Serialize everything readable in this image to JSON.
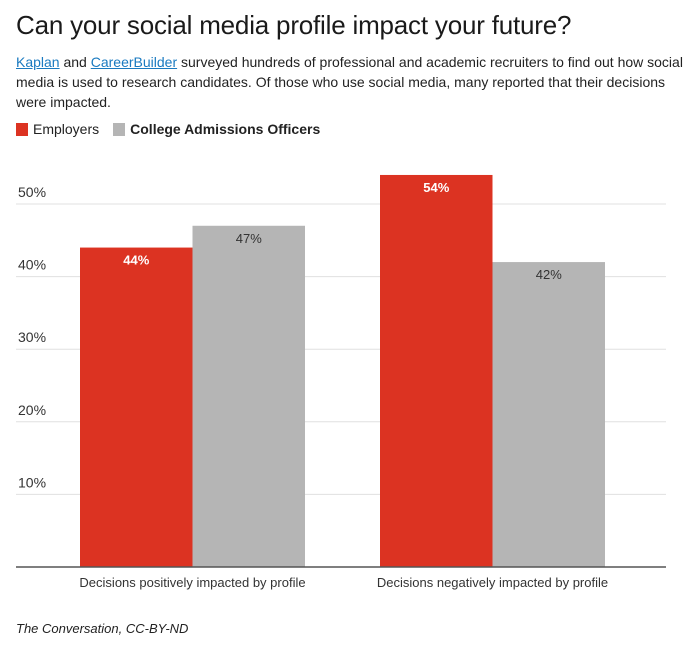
{
  "title": "Can your social media profile impact your future?",
  "description": {
    "link1": "Kaplan",
    "text1": " and ",
    "link2": "CareerBuilder",
    "text2": " surveyed hundreds of professional and academic recruiters to find out how social media is used to research candidates. Of those who use social media, many reported that their decisions were impacted."
  },
  "source": "The Conversation, CC-BY-ND",
  "colors": {
    "employers": "#dc3322",
    "admissions": "#b5b5b5",
    "grid": "#e0e0e0",
    "axis": "#555555"
  },
  "chart_data": {
    "type": "bar",
    "title": "Can your social media profile impact your future?",
    "xlabel": "",
    "ylabel": "",
    "ylim": [
      0,
      50
    ],
    "yticks": [
      10,
      20,
      30,
      40,
      50
    ],
    "ytick_labels": [
      "10%",
      "20%",
      "30%",
      "40%",
      "50%"
    ],
    "grid": true,
    "legend_placement": "top-left",
    "categories": [
      "Decisions positively impacted by profile",
      "Decisions negatively impacted by profile"
    ],
    "series": [
      {
        "name": "Employers",
        "values": [
          44,
          54
        ],
        "labels": [
          "44%",
          "54%"
        ]
      },
      {
        "name": "College Admissions Officers",
        "values": [
          47,
          42
        ],
        "labels": [
          "47%",
          "42%"
        ]
      }
    ]
  }
}
